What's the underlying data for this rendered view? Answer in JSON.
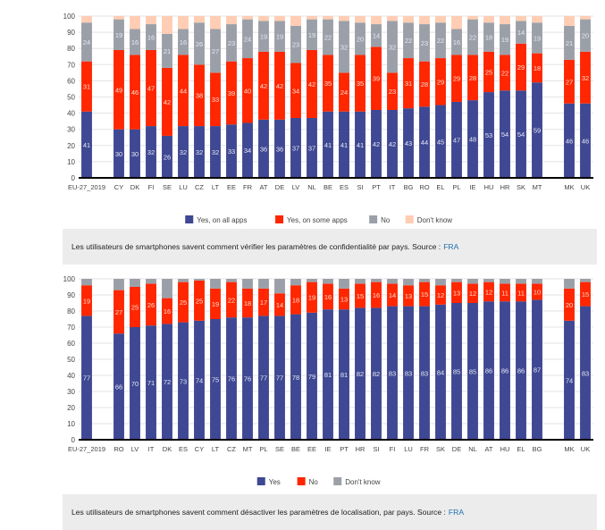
{
  "chart_data": [
    {
      "type": "bar",
      "stacked": true,
      "title": "",
      "xlabel": "",
      "ylabel": "",
      "ylim": [
        0,
        100
      ],
      "yticks": [
        0,
        10,
        20,
        30,
        40,
        50,
        60,
        70,
        80,
        90,
        100
      ],
      "grid": true,
      "legend_position": "bottom-center",
      "categories": [
        "EU-27_2019",
        "",
        "CY",
        "DK",
        "FI",
        "SE",
        "LU",
        "CZ",
        "LT",
        "EE",
        "FR",
        "AT",
        "DE",
        "LV",
        "NL",
        "BE",
        "ES",
        "SI",
        "PT",
        "IT",
        "BG",
        "RO",
        "EL",
        "PL",
        "IE",
        "HU",
        "HR",
        "SK",
        "MT",
        "",
        "MK",
        "UK"
      ],
      "series": [
        {
          "name": "Yes, on all apps",
          "color": "#3f4893",
          "values": [
            41,
            null,
            30,
            30,
            32,
            26,
            32,
            32,
            32,
            33,
            34,
            36,
            36,
            37,
            37,
            41,
            41,
            41,
            42,
            42,
            43,
            44,
            45,
            47,
            48,
            53,
            54,
            54,
            59,
            null,
            46,
            46
          ]
        },
        {
          "name": "Yes, on some apps",
          "color": "#ff2600",
          "values": [
            31,
            null,
            49,
            46,
            47,
            42,
            44,
            38,
            33,
            39,
            40,
            42,
            42,
            34,
            42,
            35,
            24,
            35,
            39,
            23,
            31,
            28,
            29,
            29,
            28,
            25,
            22,
            29,
            18,
            null,
            27,
            32
          ]
        },
        {
          "name": "No",
          "color": "#9ba0a8",
          "values": [
            24,
            null,
            19,
            16,
            16,
            21,
            16,
            26,
            27,
            23,
            24,
            19,
            19,
            23,
            19,
            22,
            32,
            20,
            14,
            32,
            22,
            23,
            22,
            16,
            22,
            18,
            19,
            14,
            19,
            null,
            21,
            20
          ]
        },
        {
          "name": "Don't know",
          "color": "#ffcdb3",
          "fill_to": 100
        }
      ]
    },
    {
      "type": "bar",
      "stacked": true,
      "title": "",
      "xlabel": "",
      "ylabel": "",
      "ylim": [
        0,
        100
      ],
      "yticks": [
        0,
        10,
        20,
        30,
        40,
        50,
        60,
        70,
        80,
        90,
        100
      ],
      "grid": true,
      "legend_position": "bottom-center",
      "categories": [
        "EU-27_2019",
        "",
        "RO",
        "LV",
        "IT",
        "DK",
        "ES",
        "CY",
        "LT",
        "CZ",
        "MT",
        "PL",
        "SE",
        "BE",
        "EE",
        "IE",
        "PT",
        "HR",
        "SI",
        "FI",
        "LU",
        "FR",
        "SK",
        "DE",
        "NL",
        "AT",
        "HU",
        "EL",
        "BG",
        "",
        "MK",
        "UK"
      ],
      "series": [
        {
          "name": "Yes",
          "color": "#3f4893",
          "values": [
            77,
            null,
            66,
            70,
            71,
            72,
            73,
            74,
            75,
            76,
            76,
            77,
            77,
            78,
            79,
            81,
            81,
            82,
            82,
            83,
            83,
            83,
            84,
            85,
            85,
            86,
            86,
            86,
            87,
            null,
            74,
            83
          ]
        },
        {
          "name": "No",
          "color": "#ff2600",
          "values": [
            19,
            null,
            27,
            25,
            26,
            16,
            25,
            25,
            19,
            22,
            18,
            17,
            14,
            18,
            19,
            16,
            13,
            15,
            16,
            14,
            13,
            15,
            12,
            13,
            12,
            12,
            11,
            11,
            10,
            null,
            20,
            15
          ]
        },
        {
          "name": "Don't know",
          "color": "#9ba0a8",
          "fill_to": 100
        }
      ]
    }
  ],
  "captions": [
    {
      "text": "Les utilisateurs de smartphones savent comment vérifier les paramètres de confidentialité par pays. Source :",
      "link": "FRA"
    },
    {
      "text": "Les utilisateurs de smartphones savent comment désactiver les paramètres de localisation, par pays. Source :",
      "link": "FRA"
    }
  ]
}
